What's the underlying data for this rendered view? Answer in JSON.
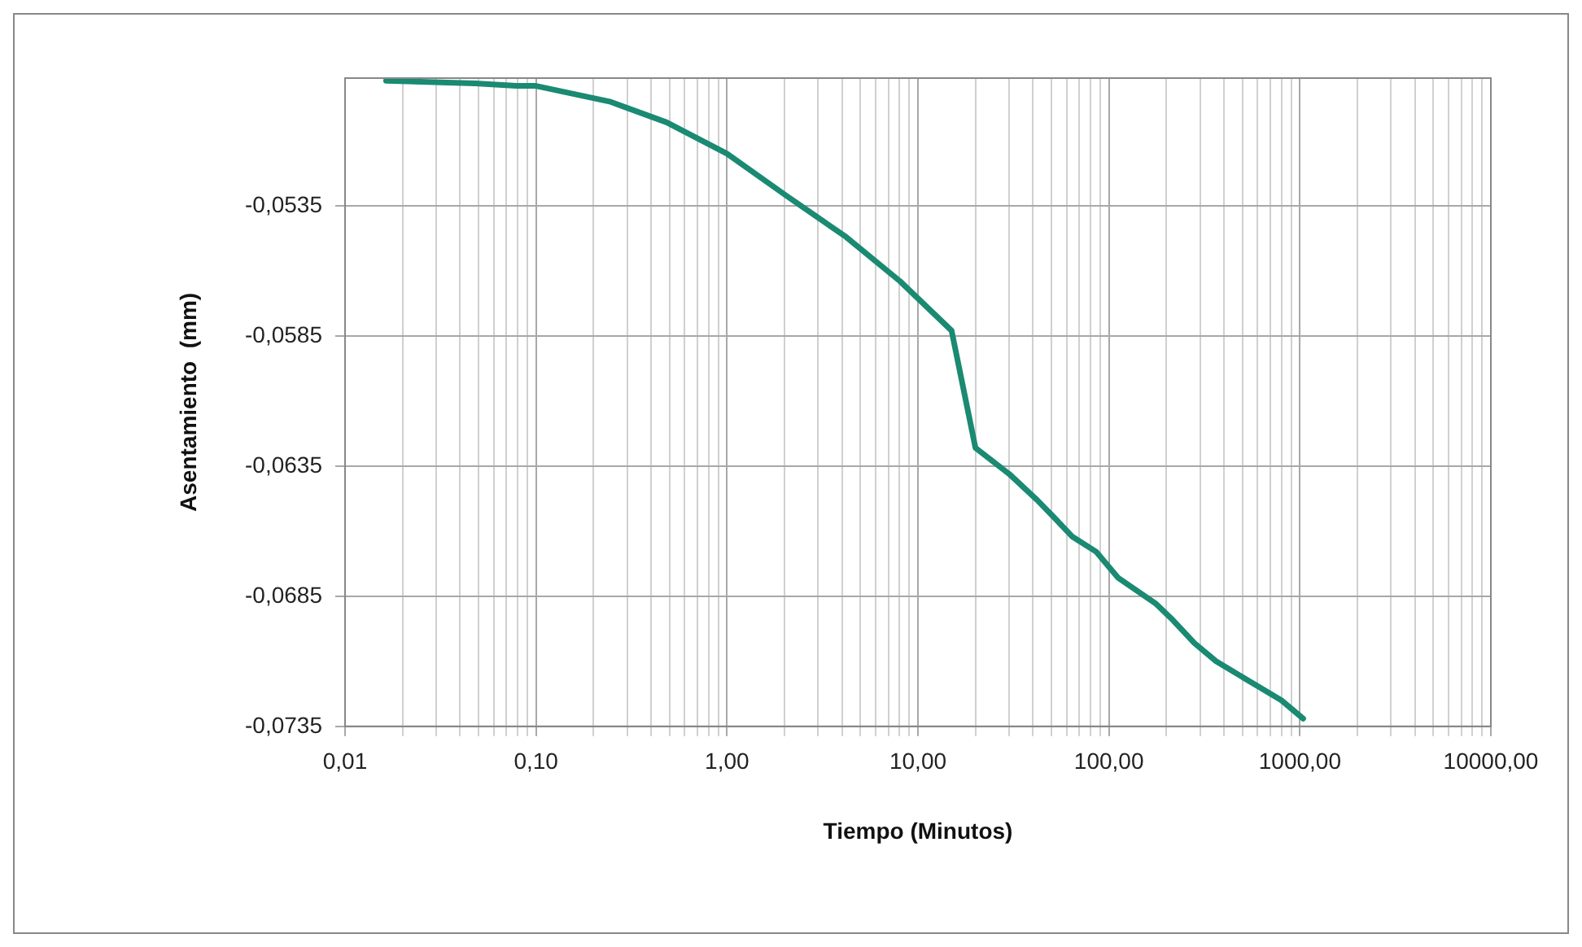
{
  "chart_data": {
    "type": "line",
    "xlabel": "Tiempo (Minutos)",
    "ylabel": "Asentamiento  (mm)",
    "log": "x",
    "grid": true,
    "legend": false,
    "marker": "none",
    "line_style": "solid",
    "xlim": [
      0.01,
      10000
    ],
    "xticks": [
      {
        "value": 0.01,
        "label": "0,01"
      },
      {
        "value": 0.02,
        "label": null
      },
      {
        "value": 0.03,
        "label": null
      },
      {
        "value": 0.04,
        "label": null
      },
      {
        "value": 0.05,
        "label": null
      },
      {
        "value": 0.06,
        "label": null
      },
      {
        "value": 0.07,
        "label": null
      },
      {
        "value": 0.08,
        "label": null
      },
      {
        "value": 0.09,
        "label": null
      },
      {
        "value": 0.1,
        "label": "0,10"
      },
      {
        "value": 0.2,
        "label": null
      },
      {
        "value": 0.3,
        "label": null
      },
      {
        "value": 0.4,
        "label": null
      },
      {
        "value": 0.5,
        "label": null
      },
      {
        "value": 0.6,
        "label": null
      },
      {
        "value": 0.7,
        "label": null
      },
      {
        "value": 0.8,
        "label": null
      },
      {
        "value": 0.9,
        "label": null
      },
      {
        "value": 1,
        "label": "1,00"
      },
      {
        "value": 2,
        "label": null
      },
      {
        "value": 3,
        "label": null
      },
      {
        "value": 4,
        "label": null
      },
      {
        "value": 5,
        "label": null
      },
      {
        "value": 6,
        "label": null
      },
      {
        "value": 7,
        "label": null
      },
      {
        "value": 8,
        "label": null
      },
      {
        "value": 9,
        "label": null
      },
      {
        "value": 10,
        "label": "10,00"
      },
      {
        "value": 20,
        "label": null
      },
      {
        "value": 30,
        "label": null
      },
      {
        "value": 40,
        "label": null
      },
      {
        "value": 50,
        "label": null
      },
      {
        "value": 60,
        "label": null
      },
      {
        "value": 70,
        "label": null
      },
      {
        "value": 80,
        "label": null
      },
      {
        "value": 90,
        "label": null
      },
      {
        "value": 100,
        "label": "100,00"
      },
      {
        "value": 200,
        "label": null
      },
      {
        "value": 300,
        "label": null
      },
      {
        "value": 400,
        "label": null
      },
      {
        "value": 500,
        "label": null
      },
      {
        "value": 600,
        "label": null
      },
      {
        "value": 700,
        "label": null
      },
      {
        "value": 800,
        "label": null
      },
      {
        "value": 900,
        "label": null
      },
      {
        "value": 1000,
        "label": "1000,00"
      },
      {
        "value": 2000,
        "label": null
      },
      {
        "value": 3000,
        "label": null
      },
      {
        "value": 4000,
        "label": null
      },
      {
        "value": 5000,
        "label": null
      },
      {
        "value": 6000,
        "label": null
      },
      {
        "value": 7000,
        "label": null
      },
      {
        "value": 8000,
        "label": null
      },
      {
        "value": 9000,
        "label": null
      },
      {
        "value": 10000,
        "label": "10000,00"
      }
    ],
    "ylim": [
      -0.0735,
      -0.0486
    ],
    "yticks": [
      {
        "value": -0.0735,
        "label": "-0,0735"
      },
      {
        "value": -0.0685,
        "label": "-0,0685"
      },
      {
        "value": -0.0635,
        "label": "-0,0635"
      },
      {
        "value": -0.0585,
        "label": "-0,0585"
      },
      {
        "value": -0.0535,
        "label": "-0,0535"
      }
    ],
    "series": [
      {
        "color": "#1a8a72",
        "x": [
          0.0164,
          0.048,
          0.079,
          0.1,
          0.243,
          0.483,
          1,
          2.03,
          4.2,
          8.05,
          15,
          20,
          30,
          42,
          52,
          64,
          86,
          112,
          177,
          215,
          280,
          364,
          615,
          800,
          1040
        ],
        "values": [
          -0.0487,
          -0.0488,
          -0.0489,
          -0.0489,
          -0.0495,
          -0.0503,
          -0.0515,
          -0.0531,
          -0.0547,
          -0.0564,
          -0.0583,
          -0.0628,
          -0.0638,
          -0.0648,
          -0.0655,
          -0.0662,
          -0.0668,
          -0.0678,
          -0.0688,
          -0.0694,
          -0.0703,
          -0.071,
          -0.072,
          -0.0725,
          -0.0732
        ]
      }
    ]
  }
}
